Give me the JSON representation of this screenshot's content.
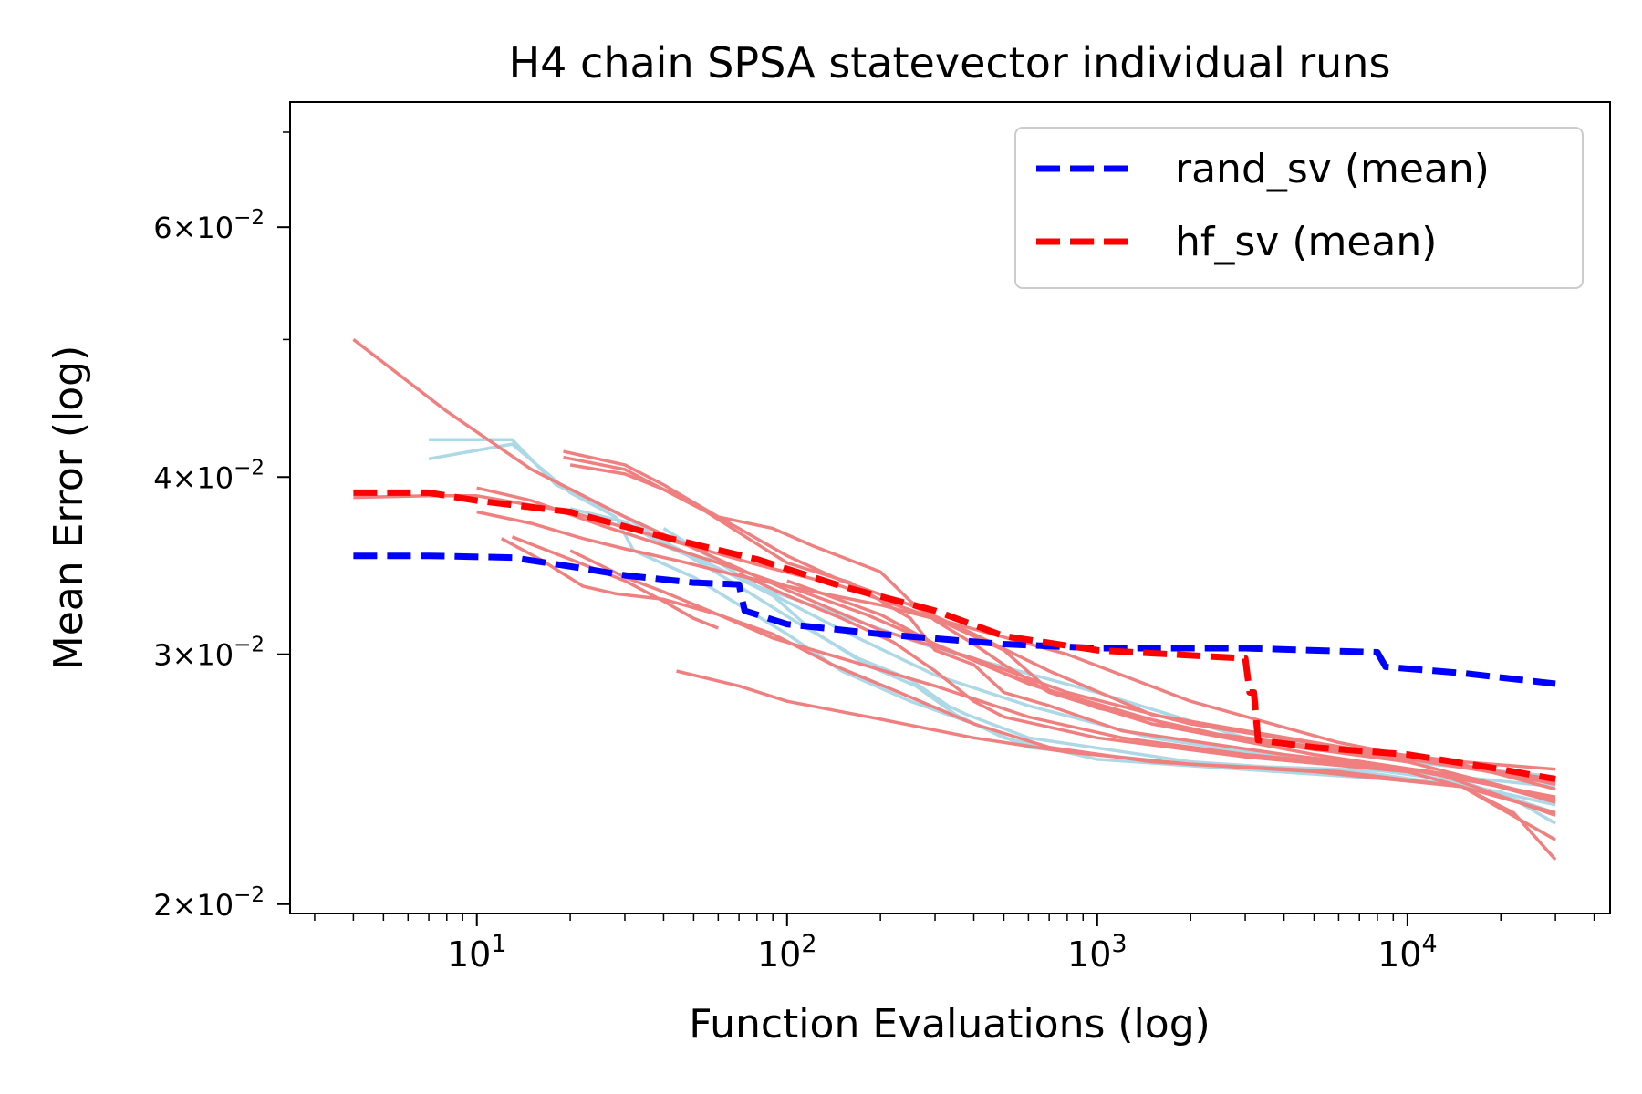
{
  "chart_data": {
    "type": "line",
    "title": "H4 chain SPSA statevector individual runs",
    "xlabel": "Function Evaluations (log)",
    "ylabel": "Mean Error (log)",
    "xscale": "log",
    "yscale": "log",
    "xlim": [
      2.5,
      45000
    ],
    "ylim": [
      0.0197,
      0.0735
    ],
    "grid": false,
    "legend_position": "top-right",
    "x_ticks": [
      {
        "value": 10,
        "base": "10",
        "exp": "1"
      },
      {
        "value": 100,
        "base": "10",
        "exp": "2"
      },
      {
        "value": 1000,
        "base": "10",
        "exp": "3"
      },
      {
        "value": 10000,
        "base": "10",
        "exp": "4"
      }
    ],
    "y_ticks": [
      {
        "value": 0.02,
        "mant": "2",
        "base": "10",
        "exp": "−2"
      },
      {
        "value": 0.03,
        "mant": "3",
        "base": "10",
        "exp": "−2"
      },
      {
        "value": 0.04,
        "mant": "4",
        "base": "10",
        "exp": "−2"
      },
      {
        "value": 0.06,
        "mant": "6",
        "base": "10",
        "exp": "−2"
      }
    ],
    "colors": {
      "rand_mean": "#0000ff",
      "hf_mean": "#ff0000",
      "rand_run": "#add8e6",
      "hf_run": "#f08080"
    },
    "mean_series": [
      {
        "name": "rand_sv (mean)",
        "color": "#0000ff",
        "points": [
          [
            4,
            0.0352
          ],
          [
            7,
            0.0352
          ],
          [
            13,
            0.0351
          ],
          [
            20,
            0.0346
          ],
          [
            30,
            0.0341
          ],
          [
            50,
            0.0337
          ],
          [
            70,
            0.0336
          ],
          [
            73,
            0.0322
          ],
          [
            100,
            0.0315
          ],
          [
            200,
            0.031
          ],
          [
            500,
            0.0305
          ],
          [
            1000,
            0.0303
          ],
          [
            3000,
            0.0303
          ],
          [
            8000,
            0.0301
          ],
          [
            8500,
            0.0294
          ],
          [
            15000,
            0.0291
          ],
          [
            30000,
            0.0286
          ]
        ]
      },
      {
        "name": "hf_sv (mean)",
        "color": "#ff0000",
        "points": [
          [
            4,
            0.039
          ],
          [
            7,
            0.039
          ],
          [
            10,
            0.0385
          ],
          [
            20,
            0.0378
          ],
          [
            40,
            0.0363
          ],
          [
            80,
            0.035
          ],
          [
            150,
            0.0335
          ],
          [
            300,
            0.0322
          ],
          [
            500,
            0.0309
          ],
          [
            1000,
            0.0302
          ],
          [
            3000,
            0.0298
          ],
          [
            3100,
            0.0282
          ],
          [
            3200,
            0.0282
          ],
          [
            3300,
            0.0261
          ],
          [
            5000,
            0.0258
          ],
          [
            10000,
            0.0255
          ],
          [
            20000,
            0.0249
          ],
          [
            30000,
            0.0245
          ]
        ]
      }
    ],
    "rand_runs": [
      {
        "points": [
          [
            7,
            0.0425
          ],
          [
            13,
            0.0425
          ],
          [
            18,
            0.0395
          ],
          [
            30,
            0.0375
          ],
          [
            40,
            0.036
          ],
          [
            60,
            0.0345
          ],
          [
            80,
            0.0335
          ],
          [
            120,
            0.0325
          ],
          [
            300,
            0.0303
          ],
          [
            1000,
            0.0282
          ],
          [
            3000,
            0.0262
          ],
          [
            10000,
            0.0252
          ],
          [
            30000,
            0.0246
          ]
        ]
      },
      {
        "points": [
          [
            7,
            0.0412
          ],
          [
            13,
            0.0422
          ],
          [
            20,
            0.039
          ],
          [
            28,
            0.0375
          ],
          [
            32,
            0.0355
          ],
          [
            50,
            0.034
          ],
          [
            70,
            0.0325
          ],
          [
            100,
            0.031
          ],
          [
            150,
            0.0292
          ],
          [
            250,
            0.0278
          ],
          [
            400,
            0.0268
          ],
          [
            600,
            0.0258
          ],
          [
            2000,
            0.0251
          ],
          [
            10000,
            0.0248
          ],
          [
            30000,
            0.0242
          ]
        ]
      },
      {
        "points": [
          [
            20,
            0.038
          ],
          [
            30,
            0.0372
          ],
          [
            40,
            0.0358
          ],
          [
            60,
            0.0345
          ],
          [
            90,
            0.033
          ],
          [
            120,
            0.0312
          ],
          [
            180,
            0.0295
          ],
          [
            260,
            0.0285
          ],
          [
            350,
            0.0272
          ],
          [
            500,
            0.0262
          ],
          [
            1000,
            0.0253
          ],
          [
            5000,
            0.0247
          ],
          [
            15000,
            0.0243
          ],
          [
            30000,
            0.0235
          ]
        ]
      },
      {
        "points": [
          [
            30,
            0.0375
          ],
          [
            45,
            0.0355
          ],
          [
            70,
            0.0335
          ],
          [
            110,
            0.0315
          ],
          [
            170,
            0.0298
          ],
          [
            250,
            0.0288
          ],
          [
            330,
            0.0276
          ],
          [
            380,
            0.0272
          ],
          [
            600,
            0.0262
          ],
          [
            2000,
            0.0252
          ],
          [
            8000,
            0.0247
          ],
          [
            20000,
            0.024
          ],
          [
            30000,
            0.0228
          ]
        ]
      },
      {
        "points": [
          [
            40,
            0.0368
          ],
          [
            80,
            0.0335
          ],
          [
            150,
            0.0312
          ],
          [
            300,
            0.029
          ],
          [
            600,
            0.0276
          ],
          [
            1500,
            0.0262
          ],
          [
            5000,
            0.0252
          ],
          [
            15000,
            0.0244
          ],
          [
            30000,
            0.0232
          ]
        ]
      }
    ],
    "hf_runs": [
      {
        "points": [
          [
            4,
            0.05
          ],
          [
            8,
            0.0445
          ],
          [
            15,
            0.0405
          ],
          [
            30,
            0.0375
          ],
          [
            60,
            0.035
          ],
          [
            100,
            0.0333
          ],
          [
            200,
            0.0312
          ],
          [
            400,
            0.0298
          ],
          [
            800,
            0.0282
          ],
          [
            2000,
            0.0268
          ],
          [
            6000,
            0.0258
          ],
          [
            15000,
            0.0252
          ],
          [
            30000,
            0.0249
          ]
        ]
      },
      {
        "points": [
          [
            4,
            0.0387
          ],
          [
            7,
            0.0388
          ],
          [
            10,
            0.0388
          ],
          [
            20,
            0.0378
          ],
          [
            40,
            0.0362
          ],
          [
            80,
            0.0347
          ],
          [
            150,
            0.0335
          ],
          [
            300,
            0.0318
          ],
          [
            500,
            0.0302
          ],
          [
            700,
            0.0283
          ],
          [
            2000,
            0.0265
          ],
          [
            8000,
            0.0255
          ],
          [
            30000,
            0.0244
          ]
        ]
      },
      {
        "points": [
          [
            10,
            0.0393
          ],
          [
            15,
            0.0385
          ],
          [
            25,
            0.037
          ],
          [
            40,
            0.0358
          ],
          [
            60,
            0.0348
          ],
          [
            100,
            0.0335
          ],
          [
            180,
            0.032
          ],
          [
            300,
            0.0305
          ],
          [
            600,
            0.0286
          ],
          [
            1500,
            0.0268
          ],
          [
            5000,
            0.0257
          ],
          [
            15000,
            0.0251
          ],
          [
            30000,
            0.0241
          ]
        ]
      },
      {
        "points": [
          [
            10,
            0.0378
          ],
          [
            15,
            0.0371
          ],
          [
            22,
            0.0362
          ],
          [
            30,
            0.0356
          ],
          [
            45,
            0.0349
          ],
          [
            65,
            0.0342
          ],
          [
            100,
            0.0335
          ],
          [
            200,
            0.0325
          ],
          [
            350,
            0.0315
          ],
          [
            800,
            0.03
          ],
          [
            2000,
            0.0278
          ],
          [
            6000,
            0.026
          ],
          [
            15000,
            0.025
          ],
          [
            30000,
            0.0245
          ]
        ]
      },
      {
        "points": [
          [
            12,
            0.0362
          ],
          [
            16,
            0.035
          ],
          [
            22,
            0.0335
          ],
          [
            28,
            0.0331
          ],
          [
            40,
            0.0328
          ],
          [
            60,
            0.032
          ],
          [
            90,
            0.0308
          ],
          [
            150,
            0.0298
          ],
          [
            300,
            0.0285
          ],
          [
            600,
            0.0271
          ],
          [
            1200,
            0.0262
          ],
          [
            3000,
            0.0255
          ],
          [
            10000,
            0.0249
          ],
          [
            30000,
            0.0238
          ]
        ]
      },
      {
        "points": [
          [
            13,
            0.0363
          ],
          [
            20,
            0.035
          ],
          [
            30,
            0.0338
          ],
          [
            40,
            0.0327
          ],
          [
            50,
            0.0318
          ],
          [
            60,
            0.0313
          ]
        ]
      },
      {
        "points": [
          [
            19,
            0.0417
          ],
          [
            30,
            0.0408
          ],
          [
            40,
            0.0395
          ],
          [
            60,
            0.0375
          ],
          [
            90,
            0.0368
          ],
          [
            120,
            0.0358
          ],
          [
            200,
            0.0343
          ],
          [
            250,
            0.0327
          ],
          [
            300,
            0.0317
          ],
          [
            400,
            0.0305
          ],
          [
            500,
            0.0295
          ],
          [
            700,
            0.0282
          ],
          [
            1500,
            0.0268
          ],
          [
            5000,
            0.0255
          ],
          [
            15000,
            0.0246
          ],
          [
            30000,
            0.0236
          ]
        ]
      },
      {
        "points": [
          [
            19,
            0.0413
          ],
          [
            30,
            0.0405
          ],
          [
            40,
            0.0392
          ],
          [
            55,
            0.0378
          ],
          [
            75,
            0.0362
          ],
          [
            100,
            0.0348
          ],
          [
            160,
            0.0337
          ],
          [
            250,
            0.0318
          ],
          [
            300,
            0.0302
          ],
          [
            400,
            0.0295
          ],
          [
            500,
            0.0282
          ],
          [
            700,
            0.0276
          ],
          [
            1200,
            0.0265
          ],
          [
            4000,
            0.0255
          ],
          [
            12000,
            0.0248
          ],
          [
            30000,
            0.0231
          ]
        ]
      },
      {
        "points": [
          [
            20,
            0.0408
          ],
          [
            30,
            0.0402
          ],
          [
            45,
            0.0388
          ],
          [
            70,
            0.0368
          ],
          [
            100,
            0.0352
          ],
          [
            150,
            0.0338
          ],
          [
            250,
            0.0325
          ],
          [
            400,
            0.031
          ],
          [
            700,
            0.0292
          ],
          [
            1500,
            0.0272
          ],
          [
            5000,
            0.026
          ],
          [
            15000,
            0.025
          ],
          [
            30000,
            0.0243
          ]
        ]
      },
      {
        "points": [
          [
            20,
            0.0355
          ],
          [
            30,
            0.034
          ],
          [
            40,
            0.0332
          ],
          [
            60,
            0.032
          ],
          [
            90,
            0.031
          ],
          [
            140,
            0.0295
          ],
          [
            230,
            0.0282
          ],
          [
            400,
            0.0268
          ],
          [
            700,
            0.0258
          ],
          [
            1500,
            0.0252
          ],
          [
            5000,
            0.0248
          ],
          [
            15000,
            0.0242
          ],
          [
            30000,
            0.0222
          ]
        ]
      },
      {
        "points": [
          [
            44,
            0.0292
          ],
          [
            70,
            0.0285
          ],
          [
            100,
            0.0278
          ],
          [
            200,
            0.027
          ],
          [
            400,
            0.0262
          ],
          [
            800,
            0.0256
          ],
          [
            2000,
            0.0251
          ],
          [
            6000,
            0.0248
          ],
          [
            15000,
            0.0242
          ],
          [
            22000,
            0.0232
          ],
          [
            30000,
            0.0215
          ]
        ]
      },
      {
        "points": [
          [
            70,
            0.0342
          ],
          [
            100,
            0.033
          ],
          [
            150,
            0.0318
          ],
          [
            220,
            0.0306
          ],
          [
            300,
            0.0292
          ],
          [
            400,
            0.0278
          ],
          [
            500,
            0.0271
          ],
          [
            1000,
            0.0262
          ],
          [
            3000,
            0.0254
          ],
          [
            10000,
            0.0248
          ],
          [
            30000,
            0.0232
          ]
        ]
      },
      {
        "points": [
          [
            100,
            0.0338
          ],
          [
            200,
            0.032
          ],
          [
            300,
            0.0305
          ],
          [
            500,
            0.0291
          ],
          [
            1000,
            0.0275
          ],
          [
            3000,
            0.0261
          ],
          [
            10000,
            0.0252
          ],
          [
            30000,
            0.0237
          ]
        ]
      }
    ],
    "legend": [
      {
        "label": "rand_sv (mean)",
        "color": "#0000ff"
      },
      {
        "label": "hf_sv (mean)",
        "color": "#ff0000"
      }
    ]
  }
}
